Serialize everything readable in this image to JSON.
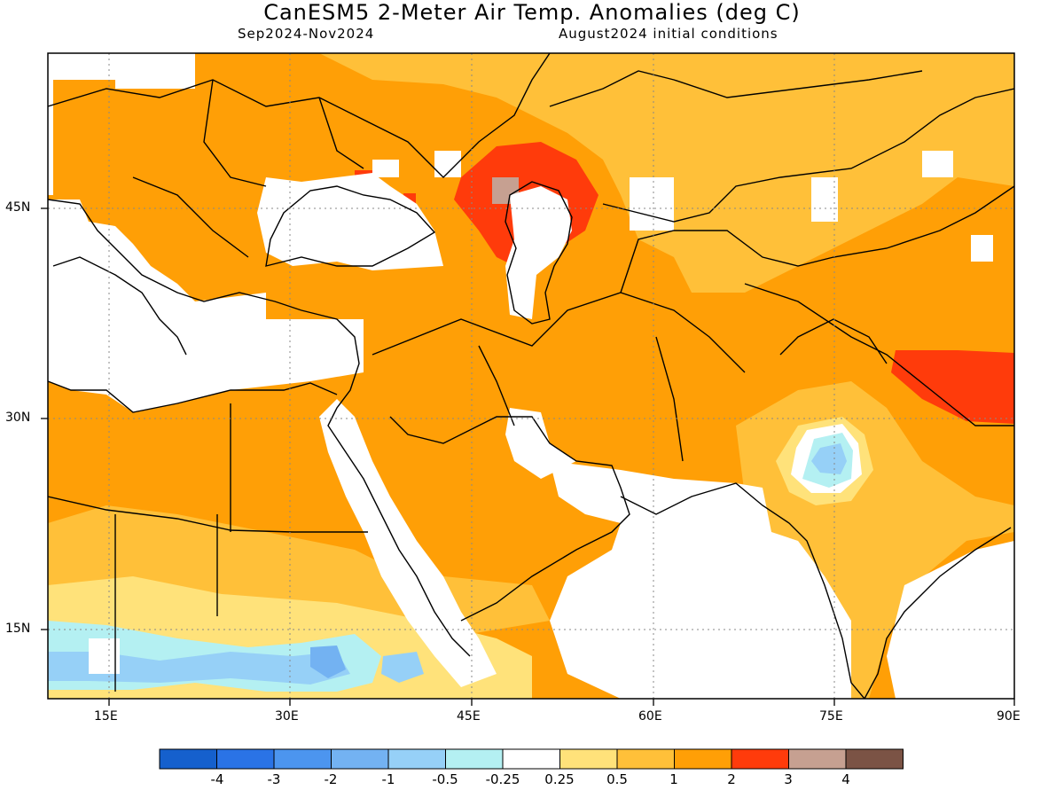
{
  "title": "CanESM5 2-Meter Air Temp. Anomalies (deg C)",
  "subtitle_left": "Sep2024-Nov2024",
  "subtitle_right": "August2024 initial conditions",
  "lat_labels": [
    "45N",
    "30N",
    "15N"
  ],
  "lon_labels": [
    "15E",
    "30E",
    "45E",
    "60E",
    "75E",
    "90E"
  ],
  "colorbar": {
    "colors": [
      "#1560cd",
      "#2a73e6",
      "#4c95ef",
      "#73b2f2",
      "#96d0f7",
      "#b4f0f2",
      "#ffffff",
      "#ffe27a",
      "#ffc039",
      "#ff9f06",
      "#ff3b0b",
      "#c6a091",
      "#7b5345"
    ],
    "labels": [
      "-4",
      "-3",
      "-2",
      "-1",
      "-0.5",
      "-0.25",
      "0.25",
      "0.5",
      "1",
      "2",
      "3",
      "4"
    ]
  },
  "chart_data": {
    "type": "heatmap",
    "title": "CanESM5 2-Meter Air Temp. Anomalies (deg C)",
    "period": "Sep2024-Nov2024",
    "initial_conditions": "August2024 initial conditions",
    "lon_range": [
      10,
      90
    ],
    "lat_range": [
      7.5,
      55
    ],
    "lon_ticks": [
      "15E",
      "30E",
      "45E",
      "60E",
      "75E",
      "90E"
    ],
    "lat_ticks": [
      "45N",
      "30N",
      "15N"
    ],
    "levels": [
      -4,
      -3,
      -2,
      -1,
      -0.5,
      -0.25,
      0.25,
      0.5,
      1,
      2,
      3,
      4
    ],
    "dominant_anomaly_range": [
      1,
      2
    ],
    "max_anomaly_range": [
      3,
      4
    ],
    "min_anomaly_range": [
      -2,
      -1
    ]
  }
}
